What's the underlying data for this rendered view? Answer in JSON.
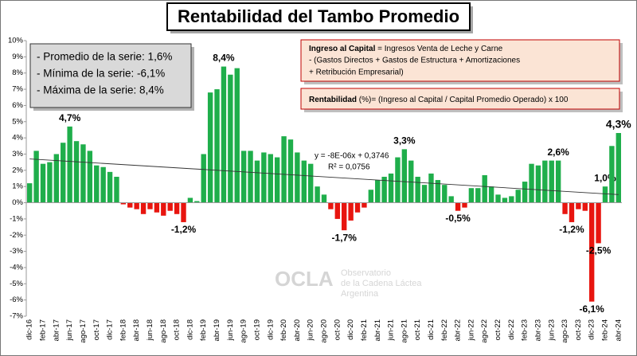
{
  "chart_data": {
    "type": "bar",
    "title": "Rentabilidad del Tambo Promedio",
    "stats_box": [
      "- Promedio de la serie: 1,6%",
      "- Mínima de la serie: -6,1%",
      "- Máxima de la serie: 8,4%"
    ],
    "formula_box": {
      "line1_bold": "Ingreso al Capital",
      "line1_rest": " = Ingresos Venta de Leche y Carne",
      "line2": "-  (Gastos Directos + Gastos de Estructura  + Amortizaciones",
      "line3": "+  Retribución Empresarial)"
    },
    "formula_box2": {
      "bold": "Rentabilidad",
      "rest": " (%)= (Ingreso al Capital / Capital Promedio Operado) x 100"
    },
    "trendline": {
      "equation": "y = -8E-06x + 0,3746",
      "r2": "R² = 0,0756",
      "values": [
        2.7,
        0.5
      ]
    },
    "watermark": {
      "logo": "OCLA",
      "line1": "Observatorio",
      "line2": "de la Cadena Láctea",
      "line3": "Argentina"
    },
    "categories": [
      "dic-16",
      null,
      "feb-17",
      null,
      "abr-17",
      null,
      "jun-17",
      null,
      "ago-17",
      null,
      "oct-17",
      null,
      "dic-17",
      null,
      "feb-18",
      null,
      "abr-18",
      null,
      "jun-18",
      null,
      "ago-18",
      null,
      "oct-18",
      null,
      "dic-18",
      null,
      "feb-19",
      null,
      "abr-19",
      null,
      "jun-19",
      null,
      "ago-19",
      null,
      "oct-19",
      null,
      "dic-19",
      null,
      "feb-20",
      null,
      "abr-20",
      null,
      "jun-20",
      null,
      "ago-20",
      null,
      "oct-20",
      null,
      "dic-20",
      null,
      "feb-21",
      null,
      "abr-21",
      null,
      "jun-21",
      null,
      "ago-21",
      null,
      "oct-21",
      null,
      "dic-21",
      null,
      "feb-22",
      null,
      "abr-22",
      null,
      "jun-22",
      null,
      "ago-22",
      null,
      "oct-22",
      null,
      "dic-22",
      null,
      "feb-23",
      null,
      "abr-23",
      null,
      "jun-23",
      null,
      "ago-23",
      null,
      "oct-23",
      null,
      "dic-23",
      null,
      "feb-24",
      null,
      "abr-24"
    ],
    "values": [
      1.2,
      3.2,
      2.4,
      2.5,
      3.0,
      3.7,
      4.7,
      3.8,
      3.6,
      3.2,
      2.3,
      2.2,
      1.9,
      1.6,
      -0.1,
      -0.3,
      -0.4,
      -0.7,
      -0.4,
      -0.6,
      -0.8,
      -0.5,
      -0.7,
      -1.2,
      0.3,
      0.1,
      3.0,
      6.8,
      7.0,
      8.4,
      7.9,
      8.3,
      3.2,
      3.2,
      2.6,
      3.1,
      3.0,
      2.8,
      4.1,
      3.9,
      3.1,
      2.6,
      2.4,
      1.0,
      0.5,
      -0.4,
      -1.0,
      -1.7,
      -1.1,
      -0.6,
      -0.3,
      0.8,
      1.4,
      1.6,
      1.8,
      2.8,
      3.3,
      2.6,
      1.6,
      1.1,
      1.8,
      1.4,
      1.1,
      0.4,
      -0.5,
      -0.3,
      0.9,
      0.9,
      1.7,
      1.0,
      0.5,
      0.3,
      0.4,
      0.8,
      1.3,
      2.4,
      2.3,
      2.6,
      2.6,
      2.6,
      -0.7,
      -1.2,
      -0.4,
      -0.5,
      -6.1,
      -2.5,
      1.0,
      3.5,
      4.3
    ],
    "value_labels": [
      null,
      null,
      null,
      null,
      null,
      null,
      "4,7%",
      null,
      null,
      null,
      null,
      null,
      null,
      null,
      null,
      null,
      null,
      null,
      null,
      null,
      null,
      null,
      null,
      "-1,2%",
      null,
      null,
      null,
      null,
      null,
      "8,4%",
      null,
      null,
      null,
      null,
      null,
      null,
      null,
      null,
      null,
      null,
      null,
      null,
      null,
      null,
      null,
      null,
      null,
      "-1,7%",
      null,
      null,
      null,
      null,
      null,
      null,
      null,
      null,
      "3,3%",
      null,
      null,
      null,
      null,
      null,
      null,
      null,
      "-0,5%",
      null,
      null,
      null,
      null,
      null,
      null,
      null,
      null,
      null,
      null,
      null,
      null,
      null,
      null,
      "2,6%",
      null,
      "-1,2%",
      null,
      null,
      "-6,1%",
      "-2,5%",
      "1,0%",
      null,
      "4,3%"
    ],
    "positive_color": "#1fae4b",
    "negative_color": "#e8150f",
    "ylim": [
      -7,
      10
    ],
    "yticks": [
      {
        "value": -7,
        "label": "-7%"
      },
      {
        "value": -6,
        "label": "-6%"
      },
      {
        "value": -5,
        "label": "-5%"
      },
      {
        "value": -4,
        "label": "-4%"
      },
      {
        "value": -3,
        "label": "-3%"
      },
      {
        "value": -2,
        "label": "-2%"
      },
      {
        "value": -1,
        "label": "-1%"
      },
      {
        "value": 0,
        "label": "0%"
      },
      {
        "value": 1,
        "label": "1%"
      },
      {
        "value": 2,
        "label": "2%"
      },
      {
        "value": 3,
        "label": "3%"
      },
      {
        "value": 4,
        "label": "4%"
      },
      {
        "value": 5,
        "label": "5%"
      },
      {
        "value": 6,
        "label": "6%"
      },
      {
        "value": 7,
        "label": "7%"
      },
      {
        "value": 8,
        "label": "8%"
      },
      {
        "value": 9,
        "label": "9%"
      },
      {
        "value": 10,
        "label": "10%"
      }
    ],
    "grid": false
  }
}
